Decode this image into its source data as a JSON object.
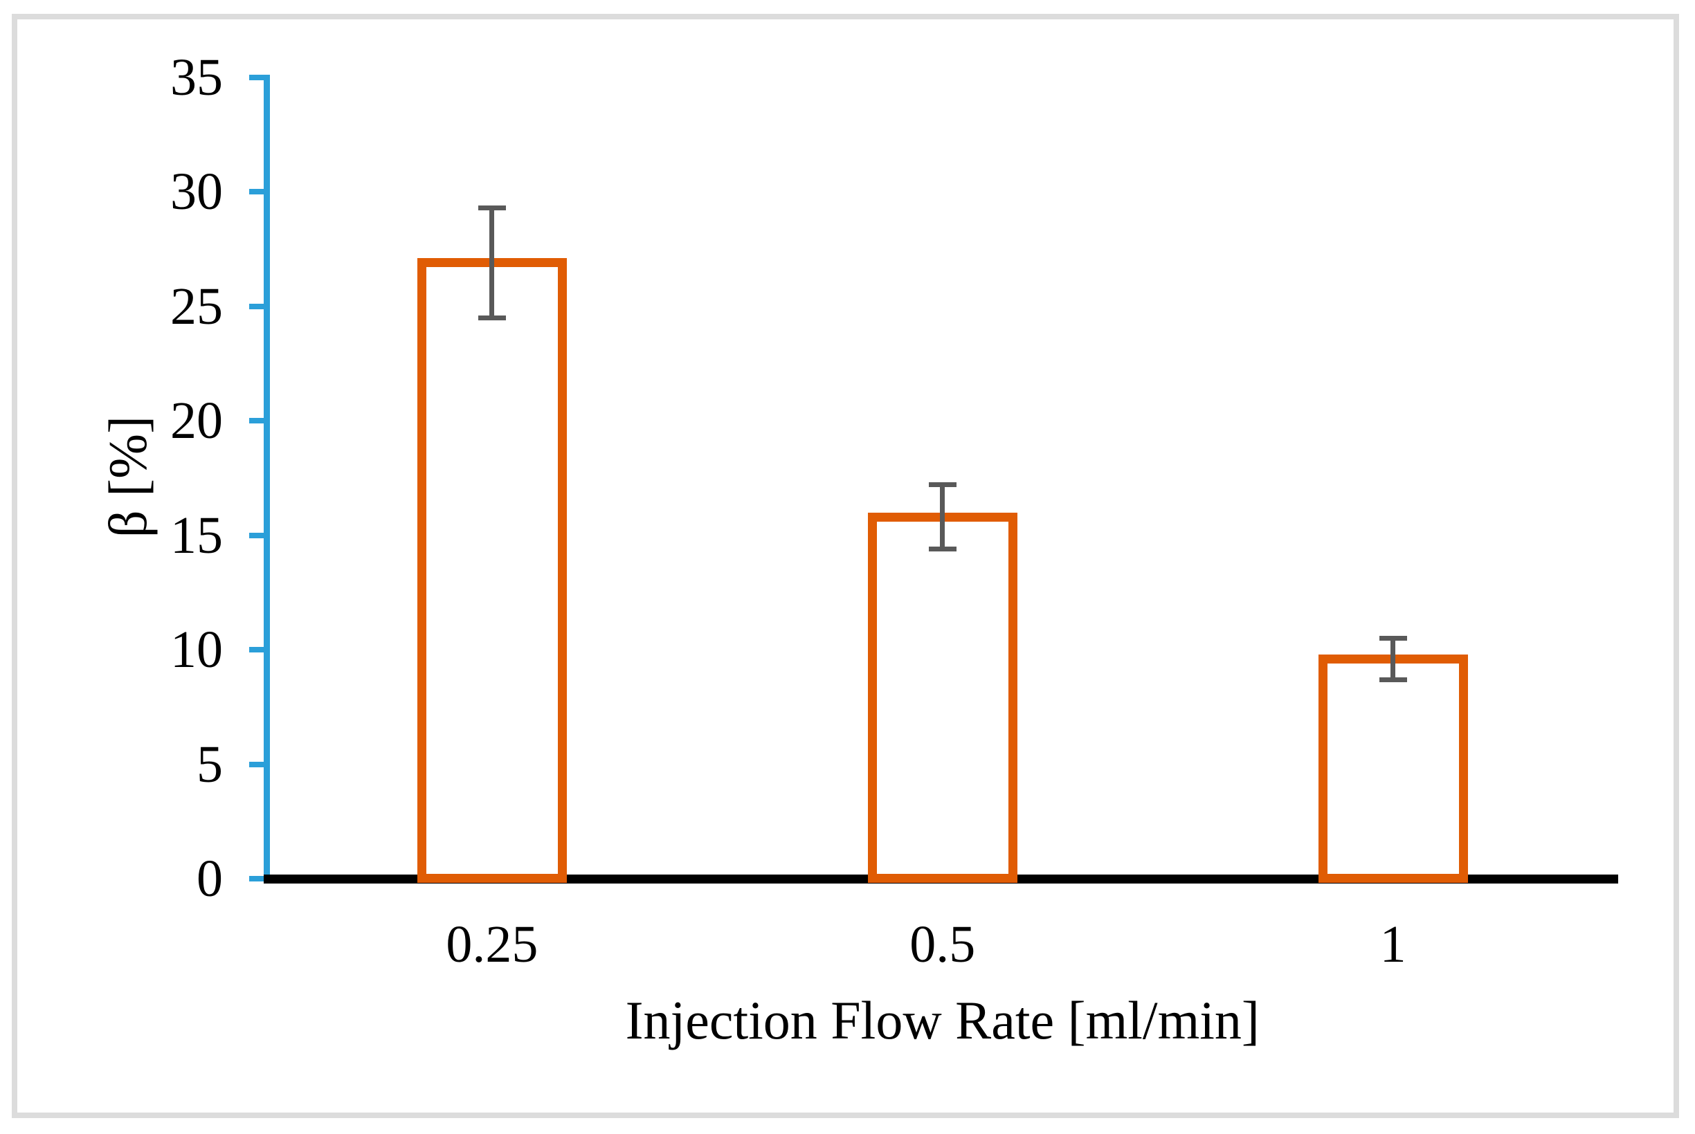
{
  "figure": {
    "frame_border_color": "#DCDCDC",
    "background_color": "#FFFFFF"
  },
  "chart_data": {
    "type": "bar",
    "categories": [
      "0.25",
      "0.5",
      "1"
    ],
    "values": [
      26.9,
      15.8,
      9.6
    ],
    "error_bars": [
      2.4,
      1.4,
      0.9
    ],
    "title": "",
    "xlabel": "Injection Flow Rate [ml/min]",
    "ylabel": "β [%]",
    "ylim": [
      0,
      35
    ],
    "yticks": [
      0,
      5,
      10,
      15,
      20,
      25,
      30,
      35
    ],
    "grid": false,
    "legend": null,
    "bar_fill": "#FFFFFF",
    "bar_stroke": "#E05C04",
    "error_bar_color": "#595959",
    "y_axis_color": "#2B9FD9",
    "x_axis_color": "#000000",
    "text_color": "#000000"
  }
}
